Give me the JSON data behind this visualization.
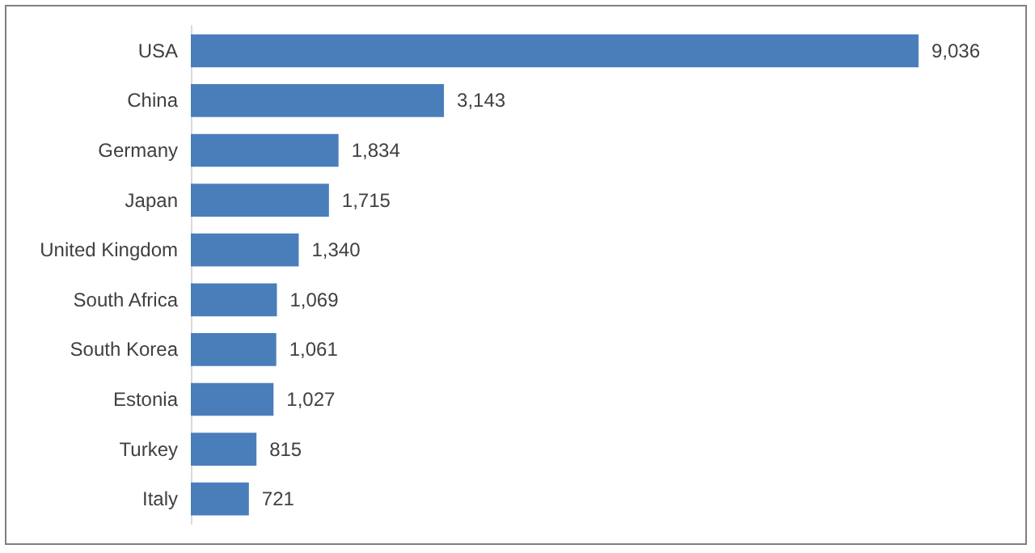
{
  "chart_data": {
    "type": "bar",
    "orientation": "horizontal",
    "categories": [
      "USA",
      "China",
      "Germany",
      "Japan",
      "United Kingdom",
      "South Africa",
      "South Korea",
      "Estonia",
      "Turkey",
      "Italy"
    ],
    "values": [
      9036,
      3143,
      1834,
      1715,
      1340,
      1069,
      1061,
      1027,
      815,
      721
    ],
    "value_labels": [
      "9,036",
      "3,143",
      "1,834",
      "1,715",
      "1,340",
      "1,069",
      "1,061",
      "1,027",
      "815",
      "721"
    ],
    "color": "#4a7ebb",
    "grid": false
  }
}
